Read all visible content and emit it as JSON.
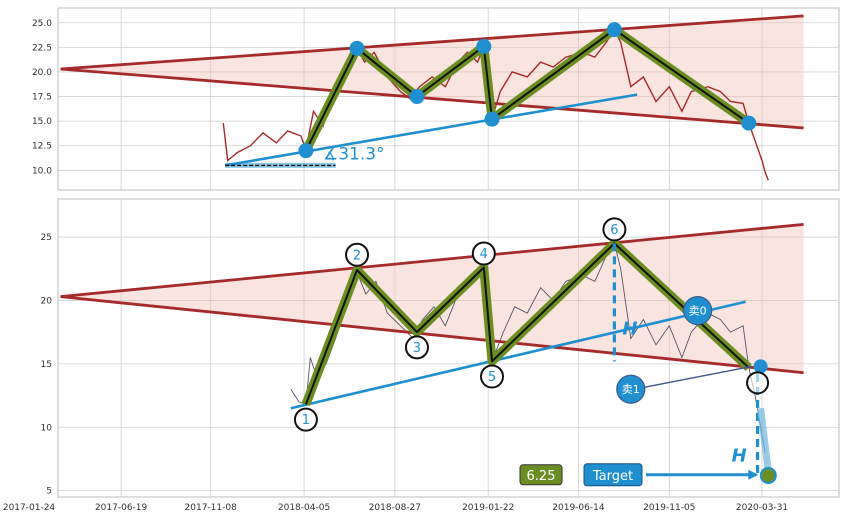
{
  "chart_data": [
    {
      "type": "line",
      "panel": "top",
      "ylim": [
        8,
        26.5
      ],
      "y_ticks": [
        "10.0",
        "12.5",
        "15.0",
        "17.5",
        "20.0",
        "22.5",
        "25.0"
      ],
      "grid": true,
      "price_series": [
        [
          "2017-11-28",
          14.8
        ],
        [
          "2017-12-05",
          11.0
        ],
        [
          "2017-12-20",
          11.8
        ],
        [
          "2018-01-10",
          12.5
        ],
        [
          "2018-01-30",
          13.8
        ],
        [
          "2018-02-20",
          12.8
        ],
        [
          "2018-03-10",
          14.0
        ],
        [
          "2018-03-31",
          13.5
        ],
        [
          "2018-04-08",
          12.1
        ],
        [
          "2018-04-20",
          16.0
        ],
        [
          "2018-05-05",
          14.5
        ],
        [
          "2018-05-20",
          17.5
        ],
        [
          "2018-06-10",
          19.5
        ],
        [
          "2018-06-28",
          22.4
        ],
        [
          "2018-07-10",
          21.0
        ],
        [
          "2018-07-25",
          22.0
        ],
        [
          "2018-08-15",
          19.5
        ],
        [
          "2018-09-05",
          18.0
        ],
        [
          "2018-09-20",
          17.3
        ],
        [
          "2018-10-05",
          18.5
        ],
        [
          "2018-10-25",
          19.5
        ],
        [
          "2018-11-15",
          18.5
        ],
        [
          "2018-12-05",
          21.0
        ],
        [
          "2018-12-20",
          22.0
        ],
        [
          "2019-01-05",
          21.0
        ],
        [
          "2019-01-15",
          22.6
        ],
        [
          "2019-01-28",
          15.2
        ],
        [
          "2019-02-10",
          18.0
        ],
        [
          "2019-03-01",
          20.0
        ],
        [
          "2019-03-25",
          19.5
        ],
        [
          "2019-04-15",
          21.0
        ],
        [
          "2019-05-05",
          20.5
        ],
        [
          "2019-05-25",
          21.5
        ],
        [
          "2019-06-20",
          22.0
        ],
        [
          "2019-07-10",
          21.5
        ],
        [
          "2019-07-28",
          23.0
        ],
        [
          "2019-08-10",
          24.3
        ],
        [
          "2019-08-20",
          23.0
        ],
        [
          "2019-09-05",
          18.5
        ],
        [
          "2019-09-25",
          19.5
        ],
        [
          "2019-10-15",
          17.0
        ],
        [
          "2019-11-05",
          18.5
        ],
        [
          "2019-11-25",
          16.0
        ],
        [
          "2019-12-10",
          18.0
        ],
        [
          "2020-01-05",
          18.5
        ],
        [
          "2020-01-25",
          18.0
        ],
        [
          "2020-02-10",
          17.0
        ],
        [
          "2020-03-01",
          16.8
        ],
        [
          "2020-03-10",
          14.8
        ],
        [
          "2020-03-20",
          13.0
        ],
        [
          "2020-03-31",
          11.0
        ],
        [
          "2020-04-05",
          9.8
        ],
        [
          "2020-04-10",
          9.0
        ]
      ],
      "zigzag": [
        [
          "2018-04-08",
          12.0
        ],
        [
          "2018-06-28",
          22.4
        ],
        [
          "2018-10-01",
          17.5
        ],
        [
          "2019-01-15",
          22.6
        ],
        [
          "2019-01-28",
          15.2
        ],
        [
          "2019-08-10",
          24.3
        ],
        [
          "2020-03-10",
          14.8
        ]
      ],
      "resistance_line": [
        [
          "2017-03-15",
          20.3
        ],
        [
          "2020-06-05",
          25.7
        ]
      ],
      "support_line": [
        [
          "2017-03-15",
          20.3
        ],
        [
          "2020-06-05",
          14.3
        ]
      ],
      "trend_line": [
        [
          "2017-12-01",
          10.5
        ],
        [
          "2019-09-15",
          17.7
        ]
      ],
      "base_line": [
        [
          "2017-12-01",
          10.5
        ],
        [
          "2018-05-25",
          10.5
        ]
      ],
      "angle_label": "∡31.3°"
    },
    {
      "type": "line",
      "panel": "bottom",
      "ylim": [
        4.5,
        28
      ],
      "y_ticks": [
        "5",
        "10",
        "15",
        "20",
        "25"
      ],
      "x_ticks": [
        "2017-01-24",
        "2017-06-19",
        "2017-11-08",
        "2018-04-05",
        "2018-08-27",
        "2019-01-22",
        "2019-06-14",
        "2019-11-05",
        "2020-03-31"
      ],
      "grid": true,
      "price_series": [
        [
          "2018-03-15",
          13.0
        ],
        [
          "2018-03-28",
          12.0
        ],
        [
          "2018-04-08",
          11.8
        ],
        [
          "2018-04-15",
          15.5
        ],
        [
          "2018-04-25",
          14.0
        ],
        [
          "2018-05-10",
          15.0
        ],
        [
          "2018-05-25",
          17.0
        ],
        [
          "2018-06-10",
          19.5
        ],
        [
          "2018-06-28",
          22.2
        ],
        [
          "2018-07-12",
          20.5
        ],
        [
          "2018-07-28",
          21.5
        ],
        [
          "2018-08-15",
          19.0
        ],
        [
          "2018-09-05",
          18.0
        ],
        [
          "2018-09-25",
          17.0
        ],
        [
          "2018-10-10",
          18.5
        ],
        [
          "2018-10-28",
          19.5
        ],
        [
          "2018-11-15",
          18.0
        ],
        [
          "2018-12-05",
          20.5
        ],
        [
          "2018-12-25",
          22.0
        ],
        [
          "2019-01-15",
          22.5
        ],
        [
          "2019-01-28",
          15.2
        ],
        [
          "2019-02-15",
          17.5
        ],
        [
          "2019-03-05",
          19.5
        ],
        [
          "2019-03-25",
          19.0
        ],
        [
          "2019-04-15",
          21.0
        ],
        [
          "2019-05-05",
          20.0
        ],
        [
          "2019-05-25",
          21.5
        ],
        [
          "2019-06-20",
          22.0
        ],
        [
          "2019-07-10",
          21.5
        ],
        [
          "2019-07-28",
          23.5
        ],
        [
          "2019-08-10",
          24.5
        ],
        [
          "2019-08-20",
          22.5
        ],
        [
          "2019-09-05",
          17.0
        ],
        [
          "2019-09-25",
          18.5
        ],
        [
          "2019-10-15",
          16.5
        ],
        [
          "2019-11-05",
          18.0
        ],
        [
          "2019-11-25",
          15.5
        ],
        [
          "2019-12-10",
          17.5
        ],
        [
          "2020-01-05",
          19.0
        ],
        [
          "2020-01-25",
          18.5
        ],
        [
          "2020-02-10",
          17.5
        ],
        [
          "2020-03-01",
          18.0
        ],
        [
          "2020-03-10",
          14.7
        ],
        [
          "2020-03-20",
          12.5
        ],
        [
          "2020-04-05",
          8.0
        ]
      ],
      "zigzag": [
        [
          "2018-04-08",
          11.8
        ],
        [
          "2018-06-28",
          22.4
        ],
        [
          "2018-10-01",
          17.5
        ],
        [
          "2019-01-15",
          22.6
        ],
        [
          "2019-01-28",
          15.2
        ],
        [
          "2019-08-10",
          24.5
        ],
        [
          "2020-03-10",
          14.7
        ]
      ],
      "resistance_line": [
        [
          "2017-03-15",
          20.3
        ],
        [
          "2020-06-05",
          26.0
        ]
      ],
      "support_line": [
        [
          "2017-03-15",
          20.3
        ],
        [
          "2020-06-05",
          14.3
        ]
      ],
      "trend_line": [
        [
          "2018-03-15",
          11.5
        ],
        [
          "2020-03-05",
          19.9
        ]
      ],
      "pivots": [
        {
          "label": "1",
          "x": "2018-04-08",
          "y": 10.6
        },
        {
          "label": "2",
          "x": "2018-06-28",
          "y": 23.6
        },
        {
          "label": "3",
          "x": "2018-10-01",
          "y": 16.3
        },
        {
          "label": "4",
          "x": "2019-01-15",
          "y": 23.7
        },
        {
          "label": "5",
          "x": "2019-01-28",
          "y": 14.0
        },
        {
          "label": "6",
          "x": "2019-08-10",
          "y": 25.6
        }
      ],
      "sell_signals": [
        {
          "label": "卖0",
          "x": "2019-12-20",
          "y": 19.2
        },
        {
          "label": "卖1",
          "x": "2019-09-05",
          "y": 13.0
        }
      ],
      "height_label": "H",
      "target_label": "Target",
      "target_value": "6.25",
      "target_point": [
        "2020-04-10",
        6.2
      ]
    }
  ]
}
